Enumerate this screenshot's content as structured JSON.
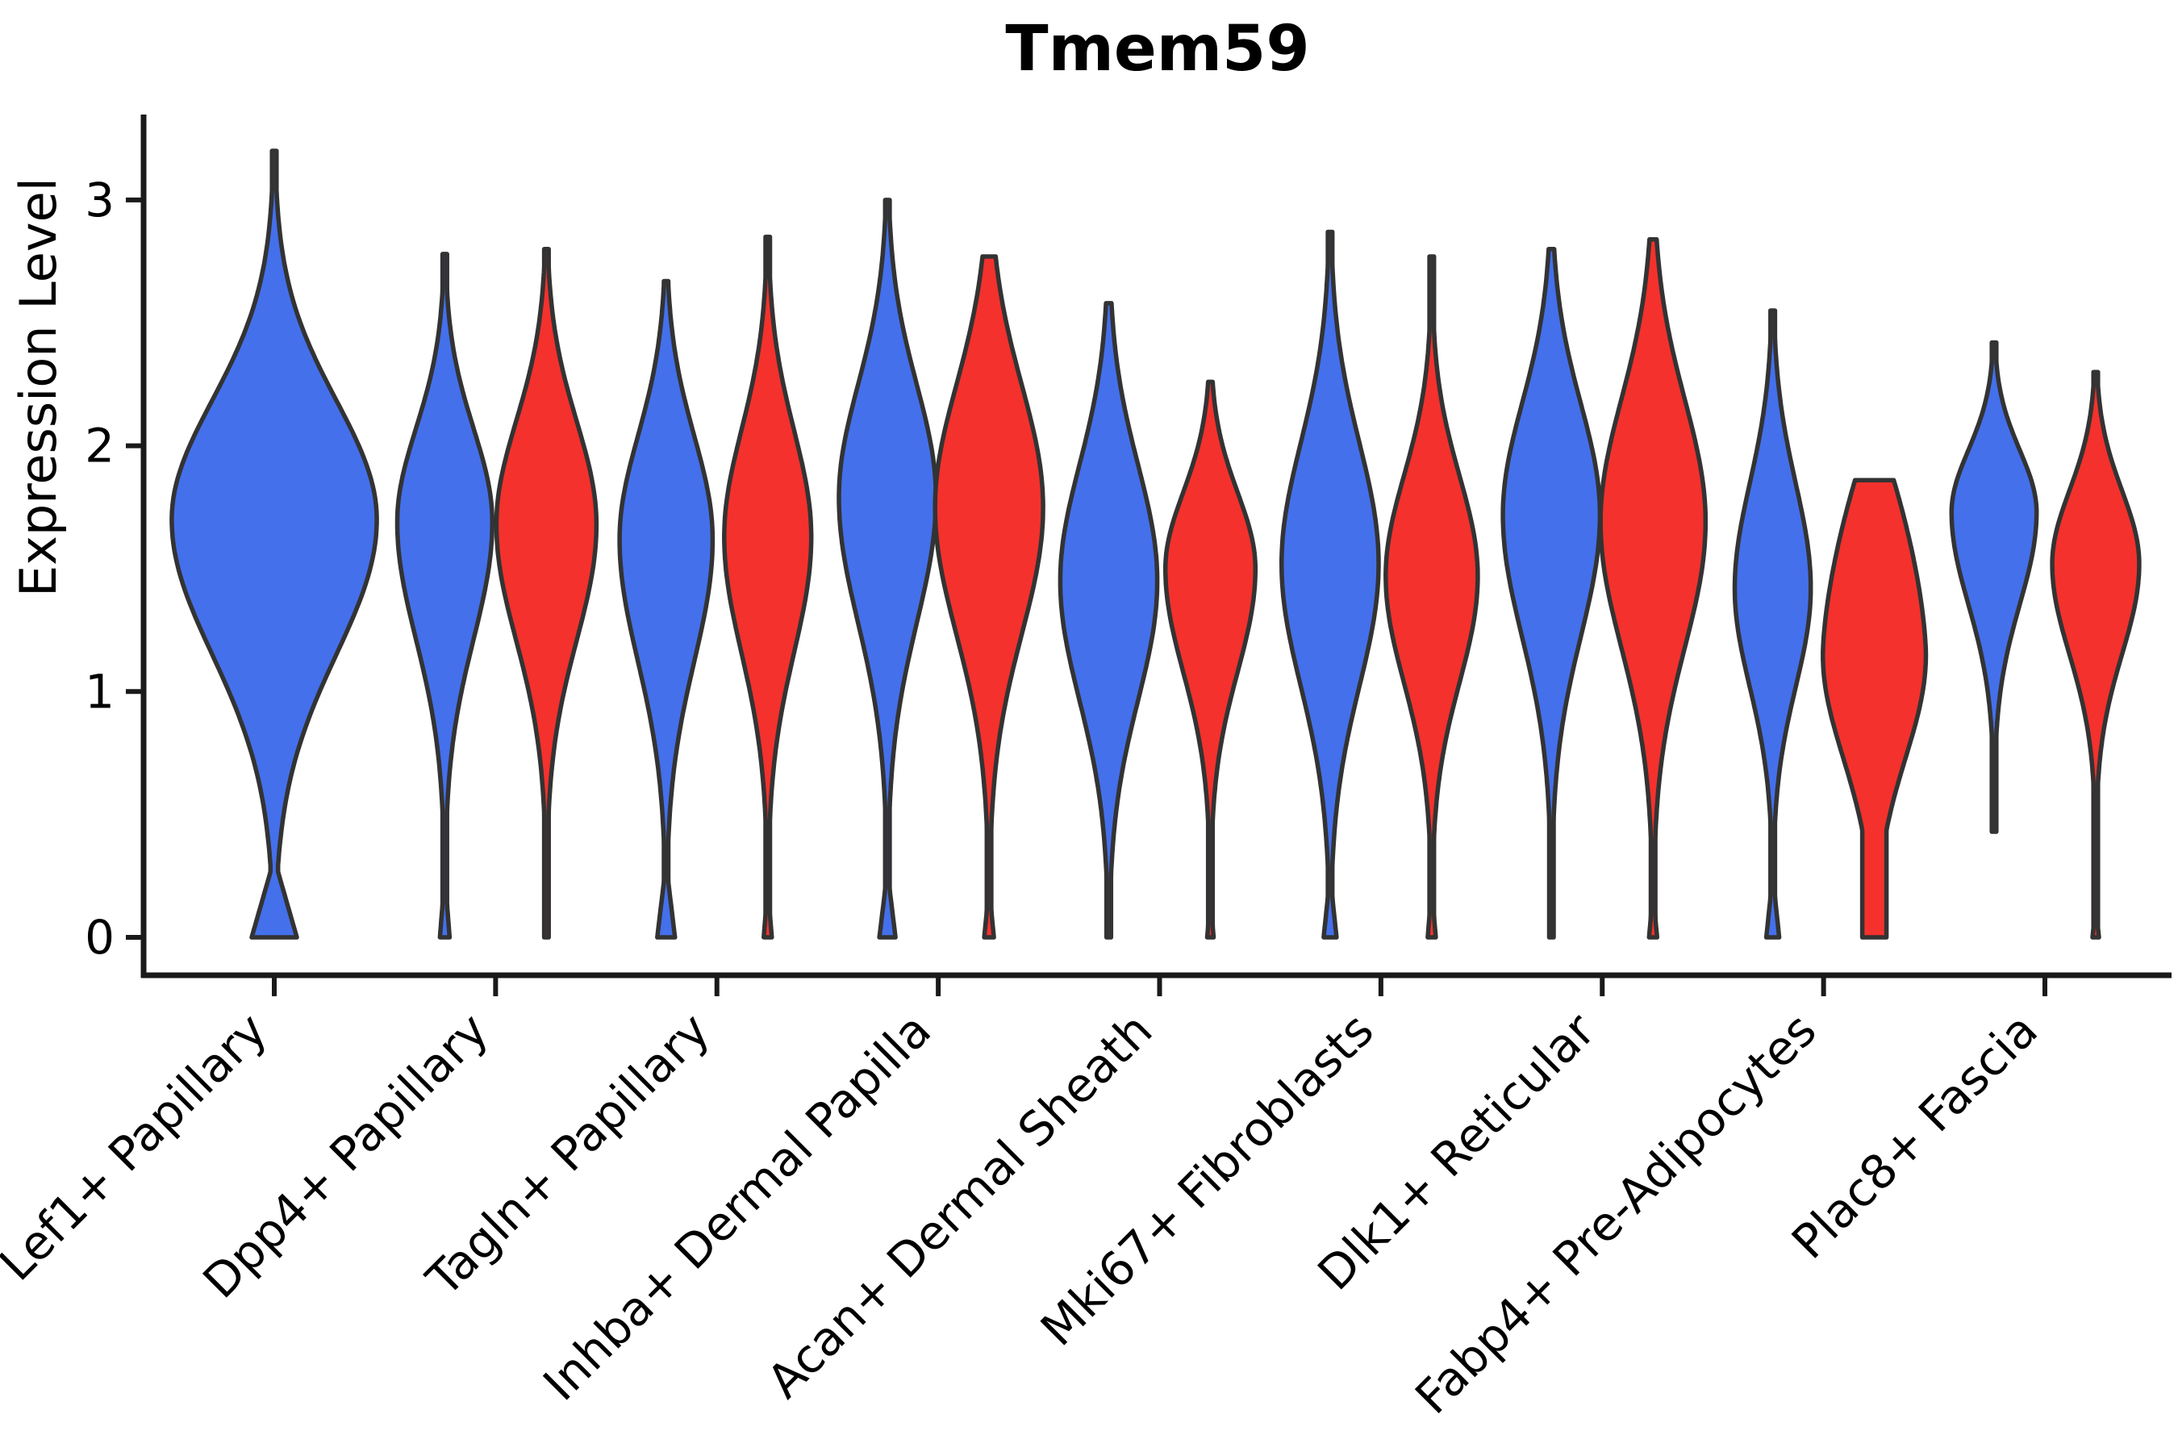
{
  "figure": {
    "background": "#ffffff"
  },
  "chart_data": {
    "type": "violin",
    "title": "Tmem59",
    "xlabel": "",
    "ylabel": "Expression Level",
    "yticks": [
      "0",
      "1",
      "2",
      "3"
    ],
    "ylim": [
      -0.15,
      3.5
    ],
    "grid": false,
    "legend": "none",
    "x_label_rotation_deg": 45,
    "categories": [
      "Lef1+ Papillary",
      "Dpp4+ Papillary",
      "Tagln+ Papillary",
      "Inhba+ Dermal Papilla",
      "Acan+ Dermal Sheath",
      "Mki67+ Fibroblasts",
      "Dlk1+ Reticular",
      "Fabp4+ Pre-Adipocytes",
      "Plac8+ Fascia"
    ],
    "colors": {
      "blue": "#4470EC",
      "red": "#F4312D",
      "outline": "#333333",
      "axis": "#1a1a1a"
    },
    "groups": [
      {
        "category": "Lef1+ Papillary",
        "violins": [
          {
            "color": "blue",
            "max": 3.2,
            "body_top": 2.45,
            "peak": 1.7,
            "body_bottom": 0.85,
            "min": 0,
            "rel_width": 2.05,
            "blob": [
              28,
              0.32
            ]
          }
        ]
      },
      {
        "category": "Dpp4+ Papillary",
        "violins": [
          {
            "color": "blue",
            "max": 2.78,
            "body_top": 2.28,
            "peak": 1.69,
            "body_bottom": 0.95,
            "min": 0,
            "rel_width": 0.95,
            "blob": [
              6,
              0.25
            ]
          },
          {
            "color": "red",
            "max": 2.8,
            "body_top": 2.33,
            "peak": 1.68,
            "body_bottom": 0.95,
            "min": 0,
            "rel_width": 1.0,
            "blob": null
          }
        ]
      },
      {
        "category": "Tagln+ Papillary",
        "violins": [
          {
            "color": "blue",
            "max": 2.67,
            "body_top": 2.27,
            "peak": 1.62,
            "body_bottom": 0.85,
            "min": 0,
            "rel_width": 0.93,
            "blob": [
              11,
              0.3
            ]
          },
          {
            "color": "red",
            "max": 2.85,
            "body_top": 2.3,
            "peak": 1.63,
            "body_bottom": 0.9,
            "min": 0,
            "rel_width": 0.87,
            "blob": [
              5,
              0.2
            ]
          }
        ]
      },
      {
        "category": "Inhba+ Dermal Papilla",
        "violins": [
          {
            "color": "blue",
            "max": 3.0,
            "body_top": 2.5,
            "peak": 1.79,
            "body_bottom": 1.0,
            "min": 0,
            "rel_width": 0.97,
            "blob": [
              10,
              0.27
            ]
          },
          {
            "color": "red",
            "max": 2.77,
            "body_top": 2.52,
            "peak": 1.75,
            "body_bottom": 0.95,
            "min": 0,
            "rel_width": 1.08,
            "blob": [
              6,
              0.2
            ]
          }
        ]
      },
      {
        "category": "Acan+ Dermal Sheath",
        "violins": [
          {
            "color": "blue",
            "max": 2.58,
            "body_top": 2.18,
            "peak": 1.45,
            "body_bottom": 0.7,
            "min": 0,
            "rel_width": 0.97,
            "blob": null
          },
          {
            "color": "red",
            "max": 2.26,
            "body_top": 1.98,
            "peak": 1.5,
            "body_bottom": 0.85,
            "min": 0,
            "rel_width": 0.9,
            "blob": [
              4,
              0.15
            ]
          }
        ]
      },
      {
        "category": "Mki67+ Fibroblasts",
        "violins": [
          {
            "color": "blue",
            "max": 2.87,
            "body_top": 2.28,
            "peak": 1.52,
            "body_bottom": 0.75,
            "min": 0,
            "rel_width": 0.97,
            "blob": [
              8,
              0.25
            ]
          },
          {
            "color": "red",
            "max": 2.77,
            "body_top": 2.1,
            "peak": 1.47,
            "body_bottom": 0.8,
            "min": 0,
            "rel_width": 0.92,
            "blob": [
              5,
              0.2
            ]
          }
        ]
      },
      {
        "category": "Dlk1+ Reticular",
        "violins": [
          {
            "color": "blue",
            "max": 2.8,
            "body_top": 2.42,
            "peak": 1.72,
            "body_bottom": 0.95,
            "min": 0,
            "rel_width": 0.97,
            "blob": null
          },
          {
            "color": "red",
            "max": 2.84,
            "body_top": 2.46,
            "peak": 1.69,
            "body_bottom": 0.9,
            "min": 0,
            "rel_width": 1.05,
            "blob": [
              5,
              0.18
            ]
          }
        ]
      },
      {
        "category": "Fabp4+ Pre-Adipocytes",
        "violins": [
          {
            "color": "blue",
            "max": 2.55,
            "body_top": 2.08,
            "peak": 1.42,
            "body_bottom": 0.8,
            "min": 0,
            "rel_width": 0.76,
            "blob": [
              8,
              0.25
            ]
          },
          {
            "color": "red",
            "max": 1.86,
            "body_top": 1.6,
            "peak": 1.15,
            "body_bottom": 0.5,
            "min": 0,
            "rel_width": 1.03,
            "blob": null,
            "flat_top_hw": 24,
            "stem_hw": 15
          }
        ]
      },
      {
        "category": "Plac8+ Fascia",
        "violins": [
          {
            "color": "blue",
            "max": 2.42,
            "body_top": 2.12,
            "peak": 1.73,
            "body_bottom": 1.15,
            "min": 0.43,
            "rel_width": 0.85,
            "blob": null
          },
          {
            "color": "red",
            "max": 2.3,
            "body_top": 1.98,
            "peak": 1.52,
            "body_bottom": 0.95,
            "min": 0,
            "rel_width": 0.87,
            "blob": [
              4,
              0.12
            ]
          }
        ]
      }
    ]
  }
}
